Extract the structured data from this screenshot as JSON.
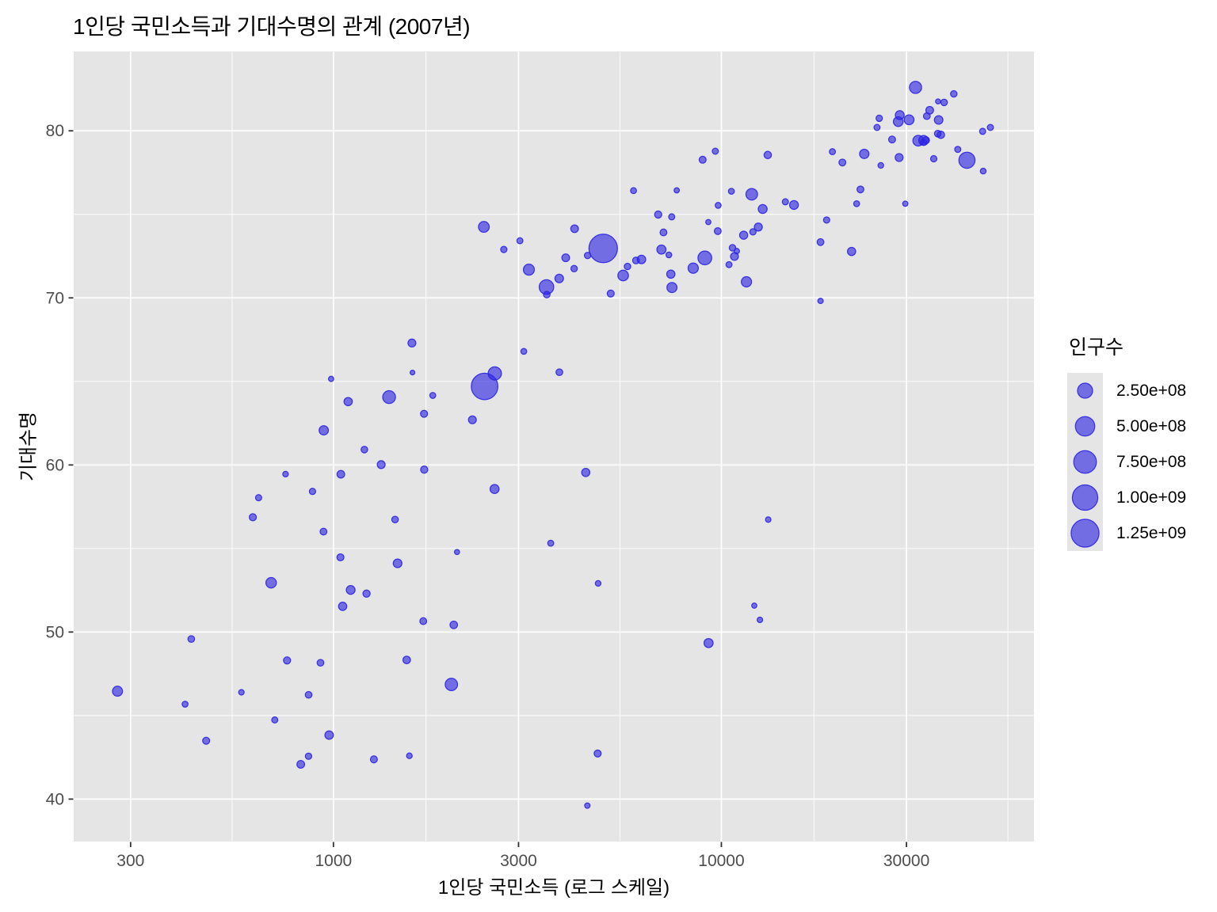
{
  "chart": {
    "title": "1인당 국민소득과 기대수명의 관계 (2007년)",
    "x_axis": {
      "label": "1인당 국민소득 (로그 스케일)",
      "tick_labels": [
        "300",
        "1000",
        "3000",
        "10000",
        "30000"
      ]
    },
    "y_axis": {
      "label": "기대수명",
      "tick_labels": [
        "40",
        "50",
        "60",
        "70",
        "80"
      ]
    },
    "legend": {
      "title": "인구수",
      "entries": [
        {
          "label": "2.50e+08",
          "value": 250000000
        },
        {
          "label": "5.00e+08",
          "value": 500000000
        },
        {
          "label": "7.50e+08",
          "value": 750000000
        },
        {
          "label": "1.00e+09",
          "value": 1000000000
        },
        {
          "label": "1.25e+09",
          "value": 1250000000
        }
      ]
    }
  },
  "style": {
    "panel_bg": "#E5E5E5",
    "grid_color": "#FFFFFF",
    "point_color": "#2B24E2",
    "point_fill_opacity": 0.62,
    "point_stroke_opacity": 0.9,
    "tick_mark_color": "#333333",
    "tick_label_color": "#4D4D4D",
    "legend_key_bg": "#E5E5E5"
  },
  "chart_data": {
    "type": "scatter",
    "title": "1인당 국민소득과 기대수명의 관계 (2007년)",
    "xlabel": "1인당 국민소득 (로그 스케일)",
    "ylabel": "기대수명",
    "x_scale": "log10",
    "x_domain": [
      214,
      63941
    ],
    "y_domain": [
      37.46,
      84.75
    ],
    "x_ticks": [
      300,
      1000,
      3000,
      10000,
      30000
    ],
    "x_minor_gridlines": [
      548,
      1732,
      5477,
      17321,
      54772
    ],
    "y_ticks": [
      40,
      50,
      60,
      70,
      80
    ],
    "y_minor_gridlines": [
      45,
      55,
      65,
      75
    ],
    "grid": true,
    "legend_position": "right",
    "legend_title": "인구수",
    "size_legend_values": [
      250000000,
      500000000,
      750000000,
      1000000000,
      1250000000
    ],
    "size_domain": [
      199579,
      1318683096
    ],
    "size_range_mm": [
      1,
      6
    ],
    "point_fields": [
      "x_income_per_capita",
      "y_life_expectancy",
      "size_population"
    ],
    "points": [
      [
        974.6,
        43.83,
        31889923
      ],
      [
        5937.0,
        76.42,
        3600523
      ],
      [
        6223.4,
        72.3,
        33333216
      ],
      [
        4797.2,
        42.73,
        12420476
      ],
      [
        12779.4,
        75.32,
        40301927
      ],
      [
        34435.4,
        81.23,
        20434176
      ],
      [
        36126.5,
        79.83,
        8199783
      ],
      [
        29796.0,
        75.64,
        708573
      ],
      [
        1391.3,
        64.06,
        150448339
      ],
      [
        33692.6,
        79.44,
        10392226
      ],
      [
        1441.3,
        56.73,
        8078314
      ],
      [
        3822.1,
        65.55,
        9119152
      ],
      [
        7446.3,
        74.85,
        4552198
      ],
      [
        12569.9,
        50.73,
        1639131
      ],
      [
        9065.8,
        72.39,
        190010647
      ],
      [
        10680.8,
        73.0,
        7322858
      ],
      [
        1217.0,
        52.3,
        14326203
      ],
      [
        430.1,
        49.58,
        8390505
      ],
      [
        1713.8,
        59.72,
        14131858
      ],
      [
        2042.1,
        50.43,
        17696293
      ],
      [
        36319.2,
        80.65,
        33390141
      ],
      [
        706.0,
        44.74,
        4369038
      ],
      [
        1704.1,
        50.65,
        10238807
      ],
      [
        13171.6,
        78.55,
        16284741
      ],
      [
        4959.1,
        72.96,
        1318683096
      ],
      [
        7006.6,
        72.89,
        44227550
      ],
      [
        986.1,
        65.15,
        710960
      ],
      [
        277.6,
        46.46,
        64606759
      ],
      [
        3632.6,
        55.32,
        3800610
      ],
      [
        9645.1,
        78.78,
        4133884
      ],
      [
        1544.8,
        48.33,
        18013409
      ],
      [
        14619.2,
        75.75,
        4493312
      ],
      [
        8948.1,
        78.27,
        11416987
      ],
      [
        22833.3,
        76.49,
        10228744
      ],
      [
        35278.4,
        78.33,
        5468120
      ],
      [
        2082.5,
        54.79,
        496374
      ],
      [
        6025.4,
        72.24,
        9319622
      ],
      [
        6873.3,
        74.99,
        13755680
      ],
      [
        5581.2,
        71.34,
        80264543
      ],
      [
        5728.4,
        71.88,
        6939688
      ],
      [
        12154.1,
        51.58,
        551201
      ],
      [
        641.4,
        58.04,
        4906585
      ],
      [
        690.8,
        52.95,
        76511887
      ],
      [
        33207.1,
        79.31,
        5238460
      ],
      [
        30470.0,
        80.66,
        61083916
      ],
      [
        13206.5,
        56.73,
        1454867
      ],
      [
        752.7,
        59.45,
        1688359
      ],
      [
        32170.4,
        79.41,
        82400996
      ],
      [
        1327.6,
        60.02,
        22873338
      ],
      [
        27538.4,
        79.48,
        10706290
      ],
      [
        5186.1,
        70.26,
        12572928
      ],
      [
        942.7,
        56.01,
        9947814
      ],
      [
        579.2,
        46.39,
        1472041
      ],
      [
        1201.6,
        60.92,
        8502814
      ],
      [
        3548.3,
        70.2,
        7483763
      ],
      [
        39725.0,
        82.21,
        6980412
      ],
      [
        18008.9,
        73.34,
        9956108
      ],
      [
        36180.8,
        81.76,
        301931
      ],
      [
        2452.2,
        64.7,
        1110396331
      ],
      [
        3540.7,
        70.65,
        223547000
      ],
      [
        11605.7,
        70.96,
        69453570
      ],
      [
        4471.1,
        59.55,
        27499638
      ],
      [
        40676.0,
        78.89,
        4109086
      ],
      [
        25523.3,
        80.75,
        6426679
      ],
      [
        28569.7,
        80.55,
        58147733
      ],
      [
        7320.9,
        72.57,
        2780132
      ],
      [
        31656.1,
        82.6,
        127467972
      ],
      [
        4519.5,
        72.54,
        6053193
      ],
      [
        1463.2,
        54.11,
        35610177
      ],
      [
        1593.1,
        67.3,
        23301725
      ],
      [
        23348.1,
        78.62,
        49044790
      ],
      [
        47307.0,
        77.59,
        2505559
      ],
      [
        10461.1,
        71.99,
        3921278
      ],
      [
        1569.3,
        42.59,
        2012649
      ],
      [
        414.5,
        45.68,
        3193942
      ],
      [
        12057.3,
        73.95,
        6036914
      ],
      [
        1044.8,
        59.44,
        19167654
      ],
      [
        759.3,
        48.3,
        13327079
      ],
      [
        12451.7,
        74.24,
        24821286
      ],
      [
        1042.6,
        54.47,
        12031795
      ],
      [
        1803.2,
        64.16,
        3270065
      ],
      [
        10957.0,
        72.8,
        1250882
      ],
      [
        11977.6,
        76.2,
        108700891
      ],
      [
        3095.8,
        66.8,
        2874127
      ],
      [
        9253.9,
        74.54,
        684736
      ],
      [
        3820.2,
        71.16,
        33757175
      ],
      [
        823.7,
        42.08,
        19951656
      ],
      [
        944.0,
        62.07,
        47761980
      ],
      [
        4811.1,
        52.91,
        2055080
      ],
      [
        1091.4,
        63.79,
        28901790
      ],
      [
        36797.9,
        79.76,
        16570613
      ],
      [
        25185.0,
        80.2,
        4115771
      ],
      [
        2749.3,
        72.9,
        5675356
      ],
      [
        619.7,
        56.87,
        12894865
      ],
      [
        2014.0,
        46.86,
        135031164
      ],
      [
        49357.2,
        80.2,
        4627926
      ],
      [
        22316.2,
        75.64,
        3204897
      ],
      [
        2606.0,
        65.48,
        169270617
      ],
      [
        9809.2,
        75.54,
        3242173
      ],
      [
        4172.8,
        71.75,
        6667147
      ],
      [
        7408.9,
        71.42,
        28674757
      ],
      [
        3190.5,
        71.69,
        91077287
      ],
      [
        15389.9,
        75.56,
        38518241
      ],
      [
        20509.6,
        78.1,
        10642836
      ],
      [
        19328.7,
        78.75,
        3942491
      ],
      [
        7670.1,
        76.44,
        798094
      ],
      [
        10808.5,
        72.48,
        22276056
      ],
      [
        863.1,
        46.24,
        8860588
      ],
      [
        1598.4,
        65.53,
        199579
      ],
      [
        21654.8,
        72.78,
        27601038
      ],
      [
        1712.5,
        63.06,
        12267493
      ],
      [
        9786.5,
        74.0,
        10150265
      ],
      [
        862.5,
        42.57,
        6144562
      ],
      [
        47143.2,
        79.97,
        4553009
      ],
      [
        18678.3,
        74.66,
        5447502
      ],
      [
        25768.3,
        77.93,
        2009245
      ],
      [
        926.1,
        48.16,
        9118773
      ],
      [
        9269.7,
        49.34,
        43997828
      ],
      [
        28821.1,
        80.94,
        40448191
      ],
      [
        3970.1,
        72.4,
        20378239
      ],
      [
        2602.4,
        58.56,
        42292929
      ],
      [
        4513.5,
        39.61,
        1133066
      ],
      [
        33859.7,
        80.88,
        9031088
      ],
      [
        37506.4,
        81.7,
        7554661
      ],
      [
        4184.5,
        74.14,
        19314747
      ],
      [
        28718.3,
        78.4,
        23174294
      ],
      [
        1107.5,
        52.52,
        38139640
      ],
      [
        7458.4,
        70.62,
        65068149
      ],
      [
        883.0,
        58.42,
        5701579
      ],
      [
        18008.5,
        69.82,
        1056608
      ],
      [
        7092.9,
        73.92,
        10276158
      ],
      [
        8458.3,
        71.78,
        71158647
      ],
      [
        1056.4,
        51.54,
        29170398
      ],
      [
        33203.3,
        79.43,
        60776238
      ],
      [
        42951.7,
        78.24,
        301139947
      ],
      [
        10611.5,
        76.38,
        3447496
      ],
      [
        11415.8,
        73.75,
        26084662
      ],
      [
        2441.6,
        74.25,
        85262356
      ],
      [
        3025.3,
        73.42,
        4018332
      ],
      [
        2280.8,
        62.7,
        22211743
      ],
      [
        1271.2,
        42.38,
        11746035
      ],
      [
        469.7,
        43.49,
        12311143
      ]
    ]
  }
}
